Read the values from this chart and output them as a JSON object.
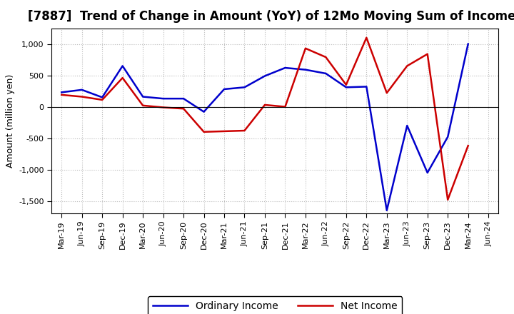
{
  "title": "[7887]  Trend of Change in Amount (YoY) of 12Mo Moving Sum of Incomes",
  "ylabel": "Amount (million yen)",
  "background_color": "#ffffff",
  "plot_background": "#ffffff",
  "grid_color": "#bbbbbb",
  "x_labels": [
    "Mar-19",
    "Jun-19",
    "Sep-19",
    "Dec-19",
    "Mar-20",
    "Jun-20",
    "Sep-20",
    "Dec-20",
    "Mar-21",
    "Jun-21",
    "Sep-21",
    "Dec-21",
    "Mar-22",
    "Jun-22",
    "Sep-22",
    "Dec-22",
    "Mar-23",
    "Jun-23",
    "Sep-23",
    "Dec-23",
    "Mar-24",
    "Jun-24"
  ],
  "ordinary_income": [
    230,
    270,
    150,
    650,
    160,
    130,
    130,
    -80,
    280,
    310,
    490,
    620,
    590,
    530,
    310,
    320,
    -1650,
    -300,
    -1050,
    -480,
    1000,
    null
  ],
  "net_income": [
    190,
    160,
    110,
    460,
    20,
    -10,
    -30,
    -400,
    -390,
    -380,
    30,
    0,
    930,
    790,
    350,
    1100,
    220,
    650,
    840,
    -1480,
    -620,
    null
  ],
  "ordinary_color": "#0000cc",
  "net_color": "#cc0000",
  "ylim": [
    -1700,
    1250
  ],
  "yticks": [
    -1500,
    -1000,
    -500,
    0,
    500,
    1000
  ],
  "line_width": 1.8,
  "title_fontsize": 12,
  "legend_labels": [
    "Ordinary Income",
    "Net Income"
  ]
}
